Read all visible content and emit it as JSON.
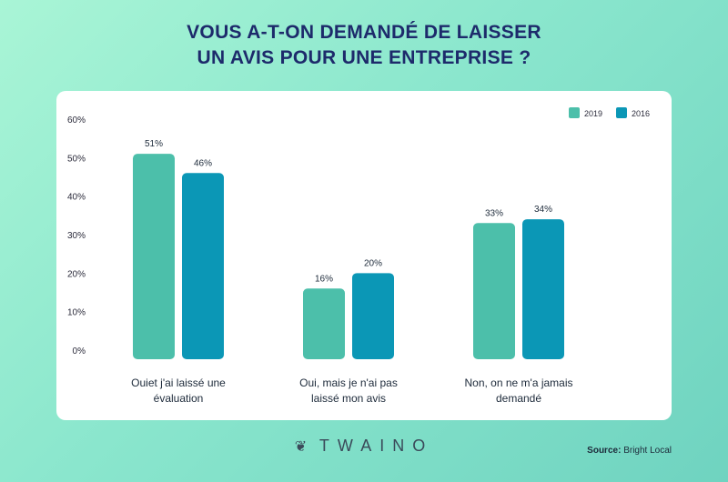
{
  "title_line1": "VOUS A-T-ON DEMANDÉ DE LAISSER",
  "title_line2": "UN AVIS POUR UNE ENTREPRISE ?",
  "logo_text": "TWAINO",
  "source_label": "Source:",
  "source_value": "Bright Local",
  "colors": {
    "series_2019": "#4cbfaa",
    "series_2016": "#0b97b6",
    "card": "#ffffff",
    "title": "#1d2a6b"
  },
  "chart_data": {
    "type": "bar",
    "categories": [
      [
        "Ouiet j'ai laissé une",
        "évaluation"
      ],
      [
        "Oui, mais je n'ai pas",
        "laissé mon avis"
      ],
      [
        "Non, on ne m'a jamais",
        "demandé"
      ]
    ],
    "series": [
      {
        "name": "2019",
        "values": [
          51,
          16,
          33
        ],
        "labels": [
          "51%",
          "16%",
          "33%"
        ],
        "color": "#4cbfaa"
      },
      {
        "name": "2016",
        "values": [
          46,
          20,
          34
        ],
        "labels": [
          "46%",
          "20%",
          "34%"
        ],
        "color": "#0b97b6"
      }
    ],
    "yticks": [
      "0%",
      "10%",
      "20%",
      "30%",
      "40%",
      "50%",
      "60%"
    ],
    "ylim": [
      0,
      60
    ],
    "legend_position": "top-right",
    "grid": false
  }
}
